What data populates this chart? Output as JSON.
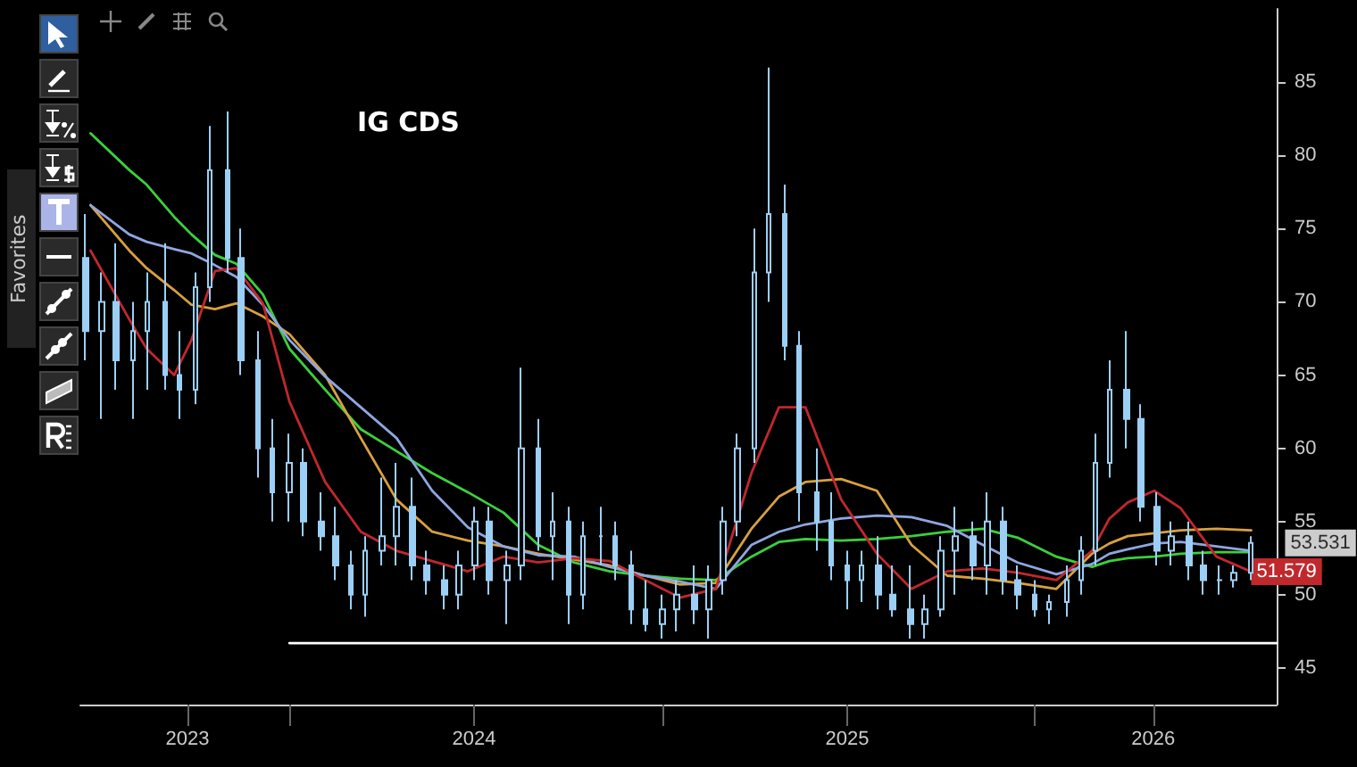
{
  "chart_data": {
    "type": "candlestick",
    "title": "IG CDS",
    "annotations": [
      "Favorites",
      {
        "text": "53.531",
        "x": "2026-08-01",
        "y": 53.531
      }
    ],
    "x": [
      "2023-06-15",
      "2023-07-01",
      "2023-07-15",
      "2023-08-01",
      "2023-08-15",
      "2023-09-01",
      "2023-09-15",
      "2023-10-01",
      "2023-10-15",
      "2023-11-01",
      "2023-11-15",
      "2023-12-01",
      "2023-12-15",
      "2024-01-01",
      "2024-01-15",
      "2024-02-01",
      "2024-02-15",
      "2024-03-01",
      "2024-03-15",
      "2024-04-01",
      "2024-04-15",
      "2024-05-01",
      "2024-05-15",
      "2024-06-01",
      "2024-06-15",
      "2024-07-01",
      "2024-07-15",
      "2024-08-01",
      "2024-08-15",
      "2024-09-01",
      "2024-09-15",
      "2024-10-01",
      "2024-10-15",
      "2024-11-01",
      "2024-11-15",
      "2024-12-01",
      "2024-12-15",
      "2025-01-01",
      "2025-01-15",
      "2025-02-01",
      "2025-02-15",
      "2025-03-01",
      "2025-03-15",
      "2025-04-01",
      "2025-04-15",
      "2025-05-01",
      "2025-05-15",
      "2025-06-01",
      "2025-06-15",
      "2025-07-01",
      "2025-07-15",
      "2025-08-01",
      "2025-08-15",
      "2025-09-01",
      "2025-09-15",
      "2025-10-01",
      "2025-10-15",
      "2025-11-01",
      "2025-11-15",
      "2025-12-01",
      "2025-12-15",
      "2026-01-01",
      "2026-01-15",
      "2026-02-01",
      "2026-02-15",
      "2026-03-01",
      "2026-03-15",
      "2026-04-01",
      "2026-04-15",
      "2026-05-01",
      "2026-05-15",
      "2026-06-01",
      "2026-06-15",
      "2026-07-01",
      "2026-07-15",
      "2026-08-01"
    ],
    "ohlc": [
      [
        73,
        76,
        66,
        68
      ],
      [
        68,
        72,
        62,
        70
      ],
      [
        70,
        74,
        64,
        66
      ],
      [
        66,
        70,
        62,
        68
      ],
      [
        68,
        72,
        64,
        70
      ],
      [
        70,
        74,
        64,
        65
      ],
      [
        65,
        68,
        62,
        64
      ],
      [
        64,
        72,
        63,
        71
      ],
      [
        71,
        82,
        70,
        79
      ],
      [
        79,
        83,
        72,
        73
      ],
      [
        73,
        75,
        65,
        66
      ],
      [
        66,
        68,
        58,
        60
      ],
      [
        60,
        62,
        55,
        57
      ],
      [
        57,
        61,
        55,
        59
      ],
      [
        59,
        60,
        54,
        55
      ],
      [
        55,
        57,
        53,
        54
      ],
      [
        54,
        56,
        51,
        52
      ],
      [
        52,
        53,
        49,
        50
      ],
      [
        50,
        54,
        48.5,
        53
      ],
      [
        53,
        58,
        52,
        54
      ],
      [
        54,
        59,
        52,
        56
      ],
      [
        56,
        58,
        51,
        52
      ],
      [
        52,
        53,
        50,
        51
      ],
      [
        51,
        52,
        49,
        50
      ],
      [
        50,
        53,
        49,
        52
      ],
      [
        52,
        56,
        51,
        55
      ],
      [
        55,
        56,
        50,
        51
      ],
      [
        51,
        53,
        48,
        52
      ],
      [
        52,
        65.5,
        51,
        60
      ],
      [
        60,
        62,
        53,
        54
      ],
      [
        54,
        57,
        51,
        55
      ],
      [
        55,
        56,
        48,
        50
      ],
      [
        50,
        55,
        49,
        54
      ],
      [
        54,
        56,
        52,
        54
      ],
      [
        54,
        55,
        51,
        52
      ],
      [
        52,
        53,
        48,
        49
      ],
      [
        49,
        51,
        47.5,
        48
      ],
      [
        48,
        50,
        47,
        49
      ],
      [
        49,
        51,
        47.5,
        50
      ],
      [
        50,
        52,
        48,
        49
      ],
      [
        49,
        52,
        47,
        51
      ],
      [
        51,
        56,
        50,
        55
      ],
      [
        55,
        61,
        54,
        60
      ],
      [
        60,
        75,
        59,
        72
      ],
      [
        72,
        86,
        70,
        76
      ],
      [
        76,
        78,
        66,
        67
      ],
      [
        67,
        68,
        55,
        57
      ],
      [
        57,
        60,
        53,
        55
      ],
      [
        55,
        57,
        51,
        52
      ],
      [
        52,
        53,
        49,
        51
      ],
      [
        51,
        53,
        49.5,
        52
      ],
      [
        52,
        54,
        49,
        50
      ],
      [
        50,
        52,
        48.5,
        49
      ],
      [
        49,
        52,
        47,
        48
      ],
      [
        48,
        50,
        47,
        49
      ],
      [
        49,
        54,
        48.5,
        53
      ],
      [
        53,
        56,
        50,
        54
      ],
      [
        54,
        55,
        51,
        52
      ],
      [
        52,
        57,
        50,
        55
      ],
      [
        55,
        56,
        50,
        51
      ],
      [
        51,
        52,
        49,
        50
      ],
      [
        50,
        51,
        48.5,
        49
      ],
      [
        49,
        50,
        48,
        49.5
      ],
      [
        49.5,
        52,
        48.5,
        51
      ],
      [
        51,
        54,
        50,
        53
      ],
      [
        53,
        61,
        52,
        59
      ],
      [
        59,
        66,
        58,
        64
      ],
      [
        64,
        68,
        60,
        62
      ],
      [
        62,
        63,
        55,
        56
      ],
      [
        56,
        57,
        52,
        53
      ],
      [
        53,
        55,
        52,
        54
      ],
      [
        54,
        55,
        51,
        52
      ],
      [
        52,
        53,
        50,
        51
      ],
      [
        51,
        52,
        50,
        51
      ],
      [
        51,
        52,
        50.5,
        51.5
      ],
      [
        51.5,
        54,
        51,
        53.531
      ]
    ],
    "color": "#9ccff5",
    "series": [
      {
        "type": "line",
        "color": "#3cd03c",
        "x": [
          "2023-06-20",
          "2023-07-28",
          "2023-08-14",
          "2023-09-10",
          "2023-09-27",
          "2023-10-20",
          "2023-11-10",
          "2023-12-06",
          "2024-01-01",
          "2024-02-05",
          "2024-03-11",
          "2024-04-15",
          "2024-05-20",
          "2024-06-24",
          "2024-07-29",
          "2024-09-01",
          "2024-10-06",
          "2024-11-10",
          "2024-12-15",
          "2025-01-18",
          "2025-02-22",
          "2025-03-29",
          "2025-04-25",
          "2025-05-21",
          "2025-06-25",
          "2025-07-30",
          "2025-09-02",
          "2025-10-07",
          "2025-11-11",
          "2025-12-15",
          "2026-01-22",
          "2026-02-26",
          "2026-03-15",
          "2026-04-02",
          "2026-04-28",
          "2026-05-24",
          "2026-06-28",
          "2026-08-01"
        ],
        "values": [
          81.5,
          79,
          78,
          75.8,
          74.6,
          73.2,
          72.6,
          70.5,
          66.8,
          64,
          61.3,
          59.8,
          58.3,
          57,
          55.6,
          53.4,
          52.2,
          51.6,
          51.3,
          51.1,
          51,
          52.6,
          53.6,
          53.8,
          53.7,
          53.8,
          54,
          54.3,
          54.5,
          53.9,
          52.6,
          51.9,
          52.3,
          52.5,
          52.6,
          52.8,
          52.9,
          52.9
        ]
      },
      {
        "type": "line",
        "color": "#d9a040",
        "x": [
          "2023-06-20",
          "2023-07-28",
          "2023-08-14",
          "2023-09-10",
          "2023-09-27",
          "2023-10-20",
          "2023-11-10",
          "2023-12-06",
          "2024-01-01",
          "2024-02-05",
          "2024-03-11",
          "2024-04-15",
          "2024-05-20",
          "2024-06-24",
          "2024-07-29",
          "2024-09-01",
          "2024-10-06",
          "2024-11-10",
          "2024-12-15",
          "2025-01-18",
          "2025-02-22",
          "2025-03-29",
          "2025-04-25",
          "2025-05-21",
          "2025-06-25",
          "2025-07-30",
          "2025-09-02",
          "2025-10-07",
          "2025-11-11",
          "2025-12-15",
          "2026-01-22",
          "2026-02-26",
          "2026-03-15",
          "2026-04-02",
          "2026-04-28",
          "2026-05-24",
          "2026-06-28",
          "2026-08-01"
        ],
        "values": [
          76.6,
          73.5,
          72.3,
          70.8,
          69.8,
          69.5,
          69.9,
          69,
          67.8,
          65,
          60.7,
          56.5,
          54.3,
          53.7,
          53.3,
          52.8,
          52.4,
          52,
          51.3,
          50.7,
          50.8,
          54.5,
          56.7,
          57.7,
          57.9,
          57.1,
          53.4,
          51.3,
          51.1,
          50.8,
          50.4,
          52.8,
          53.5,
          54,
          54.2,
          54.4,
          54.5,
          54.4
        ]
      },
      {
        "type": "line",
        "color": "#8fa6e0",
        "x": [
          "2023-06-20",
          "2023-07-28",
          "2023-08-14",
          "2023-09-10",
          "2023-09-27",
          "2023-10-20",
          "2023-11-10",
          "2023-12-06",
          "2024-01-01",
          "2024-02-05",
          "2024-03-11",
          "2024-04-15",
          "2024-05-20",
          "2024-06-24",
          "2024-07-29",
          "2024-09-01",
          "2024-10-06",
          "2024-11-10",
          "2024-12-15",
          "2025-01-18",
          "2025-02-22",
          "2025-03-29",
          "2025-04-25",
          "2025-05-21",
          "2025-06-25",
          "2025-07-30",
          "2025-09-02",
          "2025-10-07",
          "2025-11-11",
          "2025-12-15",
          "2026-01-22",
          "2026-02-26",
          "2026-03-15",
          "2026-04-02",
          "2026-04-28",
          "2026-05-24",
          "2026-06-28",
          "2026-08-01"
        ],
        "values": [
          76.6,
          74.6,
          74.1,
          73.6,
          73.3,
          72.5,
          71.7,
          69.8,
          67.4,
          64.9,
          62.8,
          60.7,
          57.1,
          54.6,
          53.3,
          52.7,
          52.6,
          51.9,
          51.3,
          50.9,
          50.4,
          53.4,
          54.3,
          54.8,
          55.2,
          55.4,
          55.3,
          54.7,
          53.4,
          52.2,
          51.4,
          52.1,
          52.8,
          53.1,
          53.5,
          53.6,
          53.3,
          53
        ]
      },
      {
        "type": "line",
        "color": "#c0282c",
        "x": [
          "2023-06-20",
          "2023-07-28",
          "2023-08-14",
          "2023-09-10",
          "2023-09-27",
          "2023-10-20",
          "2023-11-10",
          "2023-12-06",
          "2024-01-01",
          "2024-02-05",
          "2024-03-11",
          "2024-04-15",
          "2024-05-20",
          "2024-06-24",
          "2024-07-29",
          "2024-09-01",
          "2024-10-06",
          "2024-11-10",
          "2024-12-15",
          "2025-01-18",
          "2025-02-22",
          "2025-03-29",
          "2025-04-25",
          "2025-05-21",
          "2025-06-25",
          "2025-07-30",
          "2025-09-02",
          "2025-10-07",
          "2025-11-11",
          "2025-12-15",
          "2026-01-22",
          "2026-02-26",
          "2026-03-15",
          "2026-04-02",
          "2026-04-28",
          "2026-05-24",
          "2026-06-28",
          "2026-08-01"
        ],
        "values": [
          73.5,
          68.8,
          66.8,
          65,
          67.4,
          72.1,
          72.3,
          69.9,
          63.2,
          57.7,
          54.3,
          53,
          52.3,
          51.6,
          52.6,
          52.2,
          52.5,
          52.3,
          51,
          49.8,
          50.4,
          58.3,
          62.8,
          62.8,
          56.5,
          52.8,
          50.4,
          51.6,
          51.8,
          51.5,
          51,
          53,
          55.2,
          56.3,
          57.1,
          55.9,
          52.6,
          51.579
        ],
        "value_labels": [
          null,
          null,
          null,
          null,
          null,
          null,
          null,
          null,
          null,
          null,
          null,
          null,
          null,
          null,
          null,
          null,
          null,
          null,
          null,
          null,
          null,
          null,
          null,
          null,
          null,
          null,
          null,
          null,
          null,
          null,
          null,
          null,
          null,
          null,
          null,
          null,
          null,
          "51.579"
        ]
      },
      {
        "type": "line",
        "color": "#ffffff",
        "x": [
          "2024-01-01",
          "2026-08-26"
        ],
        "values": [
          46.7,
          46.7
        ]
      }
    ],
    "xlim": [
      "2023-06-10",
      "2026-08-26"
    ],
    "xticks": [
      {
        "value": "2023-09-23",
        "label": "2023"
      },
      {
        "value": "2024-01-01",
        "label": null
      },
      {
        "value": "2024-06-30",
        "label": "2024"
      },
      {
        "value": "2025-01-01",
        "label": null
      },
      {
        "value": "2025-07-01",
        "label": "2025"
      },
      {
        "value": "2026-01-01",
        "label": null
      },
      {
        "value": "2026-04-27",
        "label": "2026"
      }
    ],
    "ylim": [
      42.5,
      90
    ],
    "yticks": [
      45,
      50,
      55,
      60,
      65,
      70,
      75,
      80,
      85
    ]
  }
}
